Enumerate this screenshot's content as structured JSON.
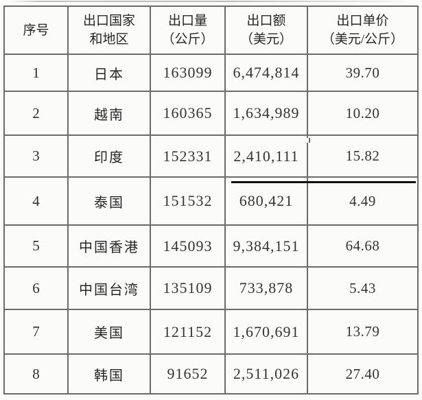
{
  "table": {
    "columns": [
      {
        "key": "index",
        "lines": [
          "序号"
        ]
      },
      {
        "key": "country",
        "lines": [
          "出口国家",
          "和地区"
        ]
      },
      {
        "key": "volume",
        "lines": [
          "出口量",
          "（公斤）"
        ]
      },
      {
        "key": "amount",
        "lines": [
          "出口额",
          "（美元）"
        ]
      },
      {
        "key": "price",
        "lines": [
          "出口单价",
          "（美元/公斤）"
        ]
      }
    ],
    "rows": [
      {
        "index": "1",
        "country": "日本",
        "volume": "163099",
        "amount": "6,474,814",
        "price": "39.70"
      },
      {
        "index": "2",
        "country": "越南",
        "volume": "160365",
        "amount": "1,634,989",
        "price": "10.20"
      },
      {
        "index": "3",
        "country": "印度",
        "volume": "152331",
        "amount": "2,410,111",
        "price": "15.82"
      },
      {
        "index": "4",
        "country": "泰国",
        "volume": "151532",
        "amount": "680,421",
        "price": "4.49"
      },
      {
        "index": "5",
        "country": "中国香港",
        "volume": "145093",
        "amount": "9,384,151",
        "price": "64.68"
      },
      {
        "index": "6",
        "country": "中国台湾",
        "volume": "135109",
        "amount": "733,878",
        "price": "5.43"
      },
      {
        "index": "7",
        "country": "美国",
        "volume": "121152",
        "amount": "1,670,691",
        "price": "13.79"
      },
      {
        "index": "8",
        "country": "韩国",
        "volume": "91652",
        "amount": "2,511,026",
        "price": "27.40"
      }
    ],
    "colors": {
      "border": "#6a6a6a",
      "text": "#2b2b2b",
      "background": "#fbfbfa",
      "heavy_artifact_line": "#0f0f0f"
    }
  }
}
